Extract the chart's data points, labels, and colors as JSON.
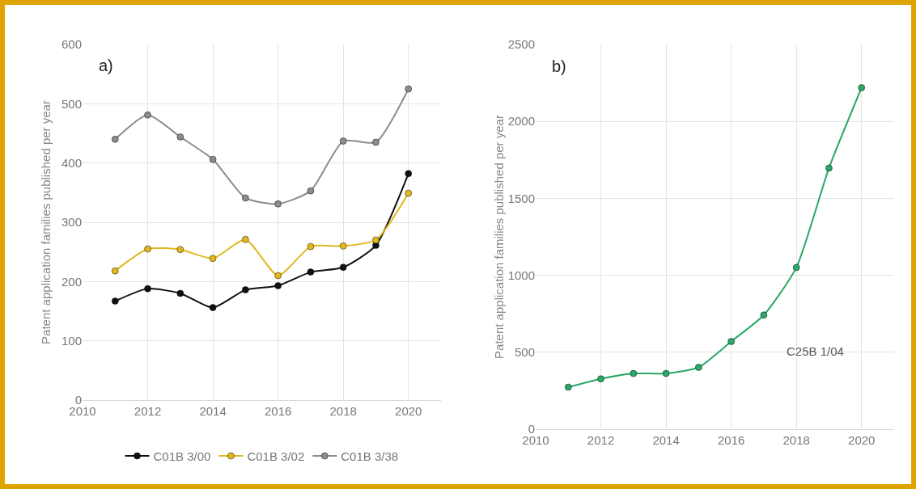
{
  "chart_data": [
    {
      "type": "line",
      "title": "a)",
      "ylabel": "Patent application families published per year",
      "x": [
        2011,
        2012,
        2013,
        2014,
        2015,
        2016,
        2017,
        2018,
        2019,
        2020
      ],
      "xlim": [
        2010,
        2021
      ],
      "xticks": [
        2010,
        2012,
        2014,
        2016,
        2018,
        2020
      ],
      "ylim": [
        0,
        600
      ],
      "yticks": [
        0,
        100,
        200,
        300,
        400,
        500,
        600
      ],
      "grid": true,
      "legend": "bottom",
      "marker": "circle",
      "line_style": "solid",
      "series": [
        {
          "name": "C01B 3/00",
          "color": "#111111",
          "values": [
            167,
            188,
            180,
            156,
            186,
            193,
            216,
            224,
            261,
            382
          ]
        },
        {
          "name": "C01B 3/02",
          "color": "#e0b81e",
          "values": [
            218,
            255,
            254,
            239,
            271,
            210,
            259,
            260,
            270,
            349
          ]
        },
        {
          "name": "C01B 3/38",
          "color": "#8c8c8c",
          "values": [
            440,
            481,
            444,
            406,
            341,
            331,
            353,
            437,
            435,
            525
          ]
        }
      ]
    },
    {
      "type": "line",
      "title": "b)",
      "ylabel": "Patent application families published per year",
      "x": [
        2011,
        2012,
        2013,
        2014,
        2015,
        2016,
        2017,
        2018,
        2019,
        2020
      ],
      "xlim": [
        2010,
        2021
      ],
      "xticks": [
        2010,
        2012,
        2014,
        2016,
        2018,
        2020
      ],
      "ylim": [
        0,
        2500
      ],
      "yticks": [
        0,
        500,
        1000,
        1500,
        2000,
        2500
      ],
      "grid": true,
      "legend": false,
      "marker": "circle",
      "line_style": "solid",
      "series": [
        {
          "name": "C25B 1/04",
          "color": "#2aa868",
          "values": [
            273,
            327,
            362,
            362,
            402,
            570,
            742,
            1051,
            1697,
            2219
          ]
        }
      ]
    }
  ]
}
